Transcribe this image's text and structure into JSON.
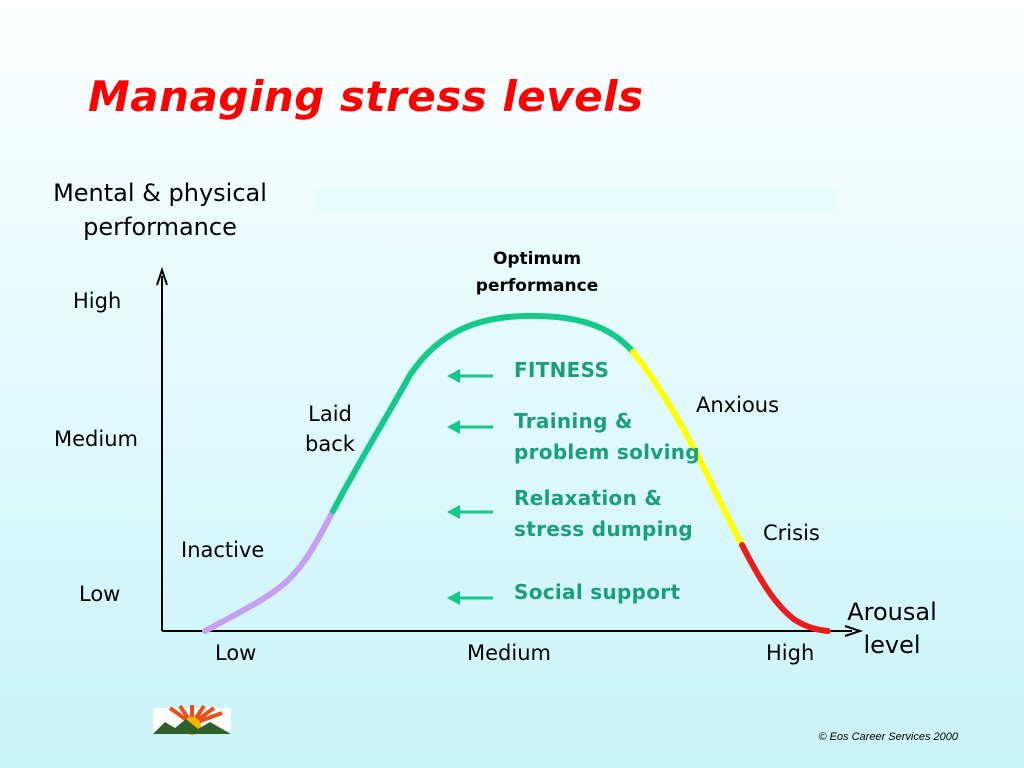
{
  "title": "Managing stress levels",
  "colors": {
    "title": "#ff0000",
    "interventions": "#19a07a",
    "curve_inactive": "#c59ff0",
    "curve_laid_back": "#14c98a",
    "curve_anxious": "#ffff00",
    "curve_crisis": "#e81e1e"
  },
  "y_axis": {
    "label_line1": "Mental & physical",
    "label_line2": "performance",
    "ticks": [
      "High",
      "Medium",
      "Low"
    ]
  },
  "x_axis": {
    "label_line1": "Arousal",
    "label_line2": "level",
    "ticks": [
      "Low",
      "Medium",
      "High"
    ]
  },
  "peak": {
    "line1": "Optimum",
    "line2": "performance"
  },
  "zones": {
    "inactive": "Inactive",
    "laid_back_line1": "Laid",
    "laid_back_line2": "back",
    "anxious": "Anxious",
    "crisis": "Crisis"
  },
  "interventions": [
    {
      "line1": "FITNESS",
      "line2": ""
    },
    {
      "line1": "Training &",
      "line2": "problem solving"
    },
    {
      "line1": "Relaxation &",
      "line2": "stress dumping"
    },
    {
      "line1": "Social support",
      "line2": ""
    }
  ],
  "logo_icon": "sunrise-logo-icon",
  "copyright": "© Eos Career Services 2000"
}
